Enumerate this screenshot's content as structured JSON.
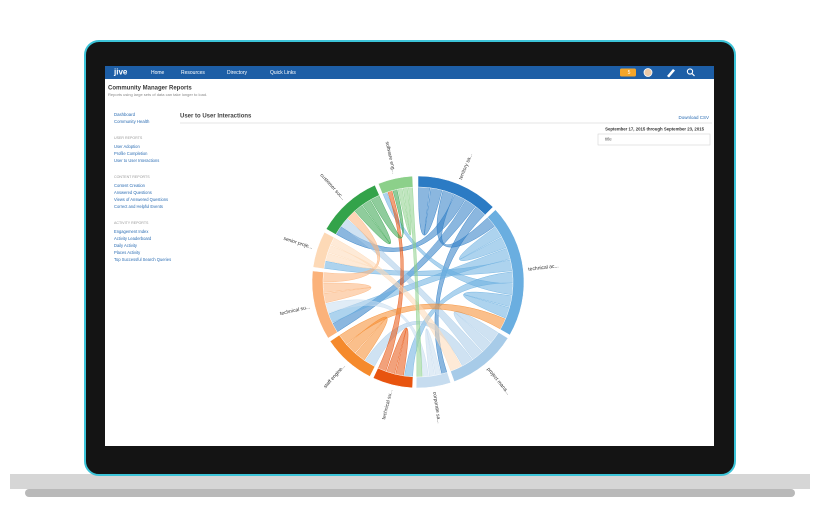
{
  "nav": {
    "logo": "jive",
    "items": [
      "Home",
      "Resources",
      "Directory",
      "Quick Links"
    ],
    "badge": "5"
  },
  "header": {
    "title": "Community Manager Reports",
    "subtitle": "Reports using large sets of data can take longer to load."
  },
  "sidebar": {
    "top": [
      "Dashboard",
      "Community Health"
    ],
    "sections": [
      {
        "heading": "USER REPORTS",
        "links": [
          "User Adoption",
          "Profile Completion",
          "User to User Interactions"
        ]
      },
      {
        "heading": "CONTENT REPORTS",
        "links": [
          "Content Creation",
          "Answered Questions",
          "Views of Answered Questions",
          "Correct and Helpful Events"
        ]
      },
      {
        "heading": "ACTIVITY REPORTS",
        "links": [
          "Engagement Index",
          "Activity Leaderboard",
          "Daily Activity",
          "Places Activity",
          "Top Successful Search Queries"
        ]
      }
    ]
  },
  "main": {
    "title": "User to User Interactions",
    "download": "Download CSV",
    "date_range": "September 17, 2015 through September 23, 2015",
    "filter": "title"
  },
  "chord": {
    "groups": [
      {
        "label": "territory sa...",
        "color": "#2b7bc4"
      },
      {
        "label": "technical ac...",
        "color": "#6aaee0"
      },
      {
        "label": "project mana...",
        "color": "#a7cbe8"
      },
      {
        "label": "corporate sa...",
        "color": "#c6dcef"
      },
      {
        "label": "technical su...",
        "color": "#e8540f"
      },
      {
        "label": "staff engine...",
        "color": "#f58a2c"
      },
      {
        "label": "technical su...",
        "color": "#fbb27a"
      },
      {
        "label": "senior proje...",
        "color": "#fdd9b6"
      },
      {
        "label": "customer suc...",
        "color": "#33a34a"
      },
      {
        "label": "software eng...",
        "color": "#8cd08a"
      }
    ]
  }
}
